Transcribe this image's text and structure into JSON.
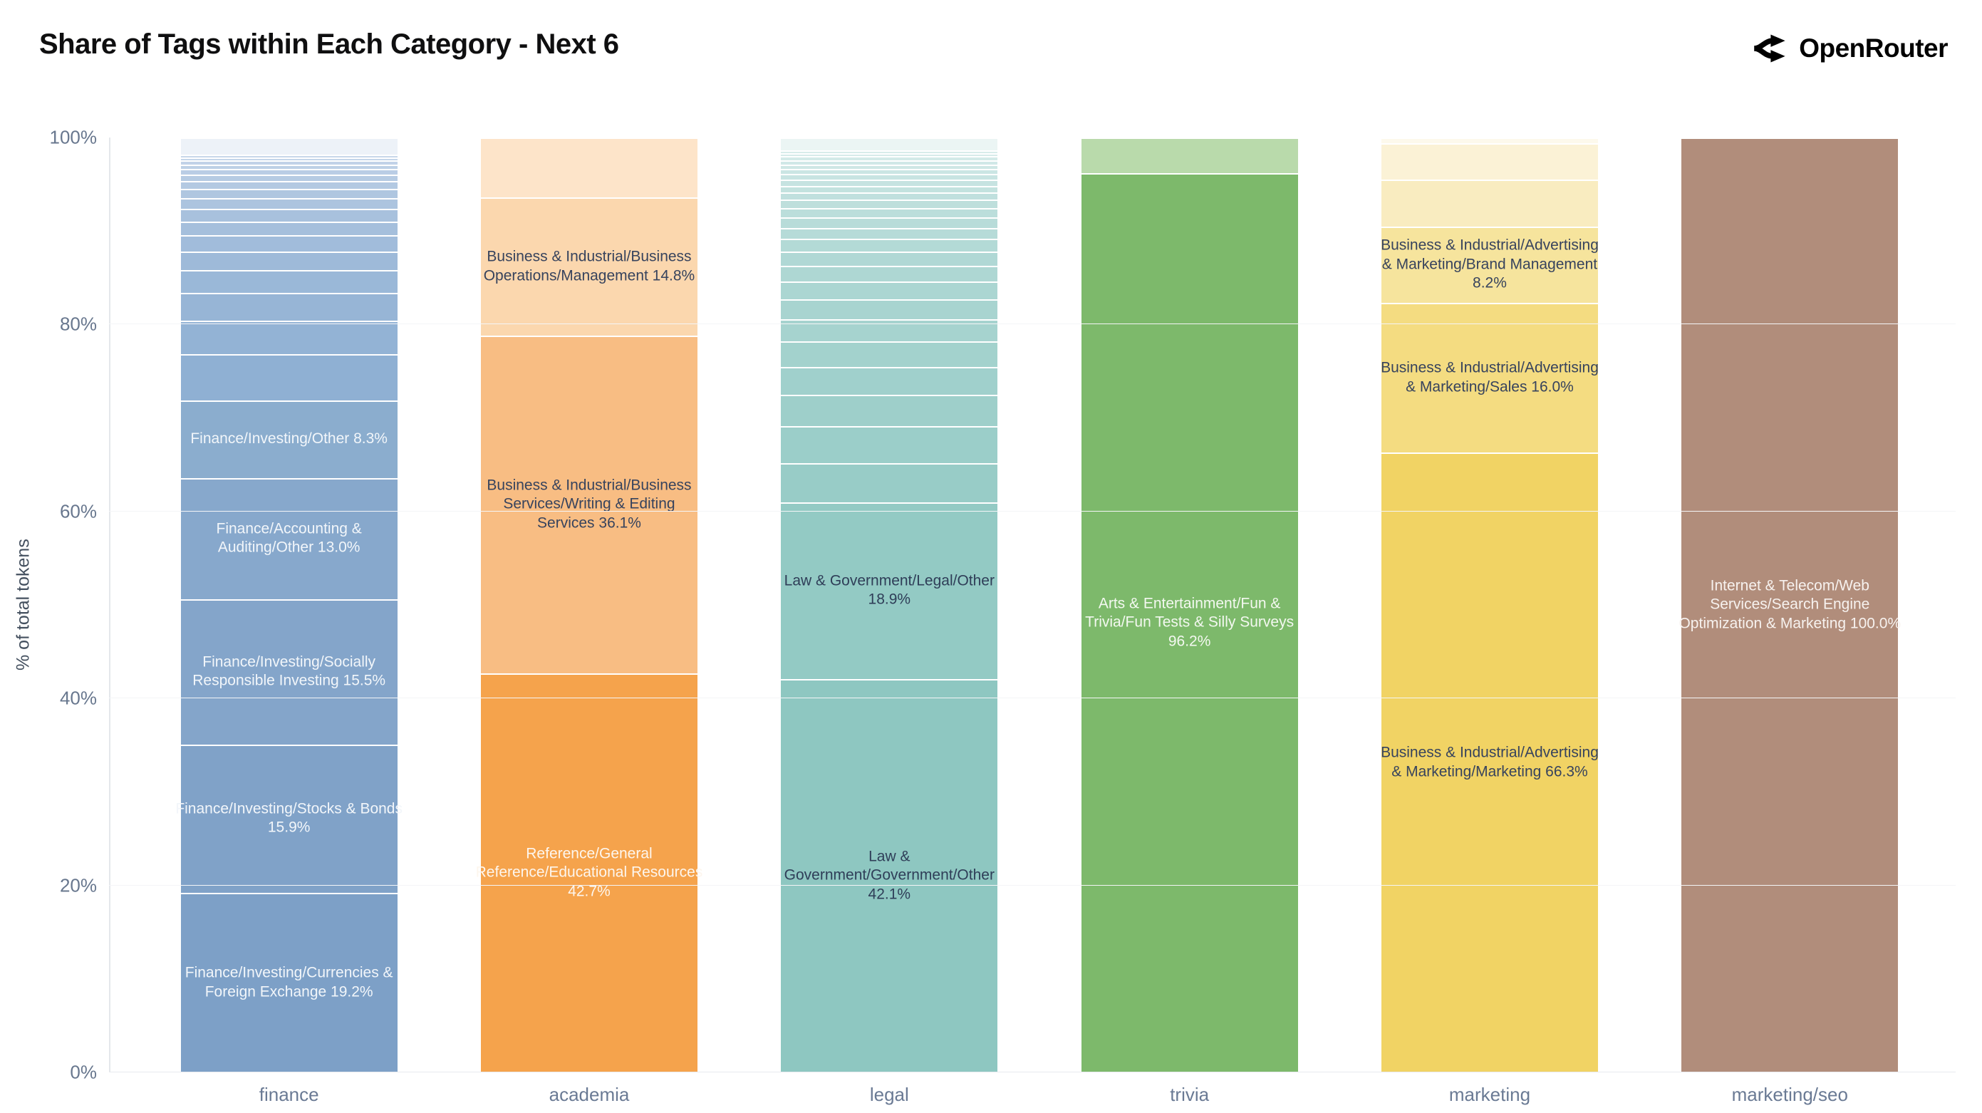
{
  "header": {
    "title": "Share of Tags within Each Category - Next 6",
    "brand": "OpenRouter"
  },
  "y_axis": {
    "label": "% of total tokens"
  },
  "chart_data": {
    "type": "bar",
    "stacked": true,
    "title": "Share of Tags within Each Category - Next 6",
    "xlabel": "",
    "ylabel": "% of total tokens",
    "ylim": [
      0,
      100
    ],
    "grid": true,
    "legend": false,
    "yticks": [
      {
        "label": "0%",
        "value": 0
      },
      {
        "label": "20%",
        "value": 20
      },
      {
        "label": "40%",
        "value": 40
      },
      {
        "label": "60%",
        "value": 60
      },
      {
        "label": "80%",
        "value": 80
      },
      {
        "label": "100%",
        "value": 100
      }
    ],
    "categories": [
      "finance",
      "academia",
      "legal",
      "trivia",
      "marketing",
      "marketing/seo"
    ],
    "bars": [
      {
        "category": "finance",
        "segments": [
          {
            "label": "Finance/Investing/Currencies & Foreign Exchange 19.2%",
            "value": 19.2,
            "color": "#7da0c7",
            "label_color": "#f2f6fa"
          },
          {
            "label": "Finance/Investing/Stocks & Bonds 15.9%",
            "value": 15.9,
            "color": "#80a2c8",
            "label_color": "#f2f6fa"
          },
          {
            "label": "Finance/Investing/Socially Responsible Investing 15.5%",
            "value": 15.5,
            "color": "#84a5ca",
            "label_color": "#f2f6fa"
          },
          {
            "label": "Finance/Accounting & Auditing/Other 13.0%",
            "value": 13.0,
            "color": "#87a8cc",
            "label_color": "#f2f6fa"
          },
          {
            "label": "Finance/Investing/Other 8.3%",
            "value": 8.3,
            "color": "#8badce",
            "label_color": "#f2f6fa"
          },
          {
            "label": "",
            "value": 4.9,
            "color": "#8fb0d3"
          },
          {
            "label": "",
            "value": 3.6,
            "color": "#93b3d5"
          },
          {
            "label": "",
            "value": 3.0,
            "color": "#97b5d6"
          },
          {
            "label": "",
            "value": 2.4,
            "color": "#9ab8d8"
          },
          {
            "label": "",
            "value": 2.0,
            "color": "#9ebad9"
          },
          {
            "label": "",
            "value": 1.75,
            "color": "#a1bcdb"
          },
          {
            "label": "",
            "value": 1.5,
            "color": "#a5bfdc"
          },
          {
            "label": "",
            "value": 1.3,
            "color": "#a8c1dd"
          },
          {
            "label": "",
            "value": 1.15,
            "color": "#acc4df"
          },
          {
            "label": "",
            "value": 1.0,
            "color": "#afc6e0"
          },
          {
            "label": "",
            "value": 0.85,
            "color": "#b3c9e2"
          },
          {
            "label": "",
            "value": 0.7,
            "color": "#b6cbe3"
          },
          {
            "label": "",
            "value": 0.6,
            "color": "#bacde5"
          },
          {
            "label": "",
            "value": 0.5,
            "color": "#bdd0e6"
          },
          {
            "label": "",
            "value": 0.4,
            "color": "#c1d2e8"
          },
          {
            "label": "",
            "value": 0.35,
            "color": "#c4d5e9"
          },
          {
            "label": "",
            "value": 0.3,
            "color": "#c8d7ea"
          },
          {
            "label": "",
            "value": 1.8,
            "color": "#edf2f8"
          }
        ]
      },
      {
        "category": "academia",
        "segments": [
          {
            "label": "Reference/General Reference/Educational Resources 42.7%",
            "value": 42.7,
            "color": "#f5a34c",
            "label_color": "#fdf6ee"
          },
          {
            "label": "Business & Industrial/Business Services/Writing & Editing Services 36.1%",
            "value": 36.1,
            "color": "#f8bd83",
            "label_color": "#37435d"
          },
          {
            "label": "Business & Industrial/Business Operations/Management 14.8%",
            "value": 14.8,
            "color": "#fbd7ae",
            "label_color": "#37435d"
          },
          {
            "label": "",
            "value": 6.4,
            "color": "#fde4c9"
          }
        ]
      },
      {
        "category": "legal",
        "segments": [
          {
            "label": "Law & Government/Government/Other 42.1%",
            "value": 42.1,
            "color": "#8ec7c1",
            "label_color": "#2f3e58"
          },
          {
            "label": "Law & Government/Legal/Other 18.9%",
            "value": 18.9,
            "color": "#93cac4",
            "label_color": "#2f3e58"
          },
          {
            "label": "",
            "value": 4.2,
            "color": "#98ccc7"
          },
          {
            "label": "",
            "value": 3.9,
            "color": "#9bcec9"
          },
          {
            "label": "",
            "value": 3.4,
            "color": "#9ecfca"
          },
          {
            "label": "",
            "value": 3.0,
            "color": "#a0d0cc"
          },
          {
            "label": "",
            "value": 2.7,
            "color": "#a3d2cd"
          },
          {
            "label": "",
            "value": 2.4,
            "color": "#a6d3cf"
          },
          {
            "label": "",
            "value": 2.1,
            "color": "#a8d4d0"
          },
          {
            "label": "",
            "value": 1.9,
            "color": "#abd6d2"
          },
          {
            "label": "",
            "value": 1.7,
            "color": "#aed7d3"
          },
          {
            "label": "",
            "value": 1.5,
            "color": "#b0d8d5"
          },
          {
            "label": "",
            "value": 1.35,
            "color": "#b3dad6"
          },
          {
            "label": "",
            "value": 1.2,
            "color": "#b6dbd8"
          },
          {
            "label": "",
            "value": 1.1,
            "color": "#b8dcd9"
          },
          {
            "label": "",
            "value": 1.0,
            "color": "#bbdedb"
          },
          {
            "label": "",
            "value": 0.9,
            "color": "#bedfdc"
          },
          {
            "label": "",
            "value": 0.8,
            "color": "#c0e0de"
          },
          {
            "label": "",
            "value": 0.7,
            "color": "#c3e2df"
          },
          {
            "label": "",
            "value": 0.65,
            "color": "#c6e3e1"
          },
          {
            "label": "",
            "value": 0.6,
            "color": "#c8e4e2"
          },
          {
            "label": "",
            "value": 0.55,
            "color": "#cbe6e4"
          },
          {
            "label": "",
            "value": 0.5,
            "color": "#cee7e5"
          },
          {
            "label": "",
            "value": 0.45,
            "color": "#d0e8e7"
          },
          {
            "label": "",
            "value": 0.4,
            "color": "#d3eae8"
          },
          {
            "label": "",
            "value": 0.35,
            "color": "#d6ebea"
          },
          {
            "label": "",
            "value": 0.3,
            "color": "#d8ecea"
          },
          {
            "label": "",
            "value": 1.35,
            "color": "#ebf5f4"
          }
        ]
      },
      {
        "category": "trivia",
        "segments": [
          {
            "label": "Arts & Entertainment/Fun & Trivia/Fun Tests & Silly Surveys 96.2%",
            "value": 96.2,
            "color": "#7db96b",
            "label_color": "#f3f8f0"
          },
          {
            "label": "",
            "value": 3.8,
            "color": "#b9daab"
          }
        ]
      },
      {
        "category": "marketing",
        "segments": [
          {
            "label": "Business & Industrial/Advertising & Marketing/Marketing 66.3%",
            "value": 66.3,
            "color": "#f1d364",
            "label_color": "#37435d"
          },
          {
            "label": "Business & Industrial/Advertising & Marketing/Sales 16.0%",
            "value": 16.0,
            "color": "#f4dc81",
            "label_color": "#37435d"
          },
          {
            "label": "Business & Industrial/Advertising & Marketing/Brand Management 8.2%",
            "value": 8.2,
            "color": "#f6e49d",
            "label_color": "#37435d"
          },
          {
            "label": "",
            "value": 5.0,
            "color": "#f9ecc0"
          },
          {
            "label": "",
            "value": 3.9,
            "color": "#fbf2d6"
          },
          {
            "label": "",
            "value": 0.6,
            "color": "#fdf9ec"
          }
        ]
      },
      {
        "category": "marketing/seo",
        "segments": [
          {
            "label": "Internet & Telecom/Web Services/Search Engine Optimization & Marketing 100.0%",
            "value": 100.0,
            "color": "#b18d7b",
            "label_color": "#f7f2ef"
          }
        ]
      }
    ]
  }
}
